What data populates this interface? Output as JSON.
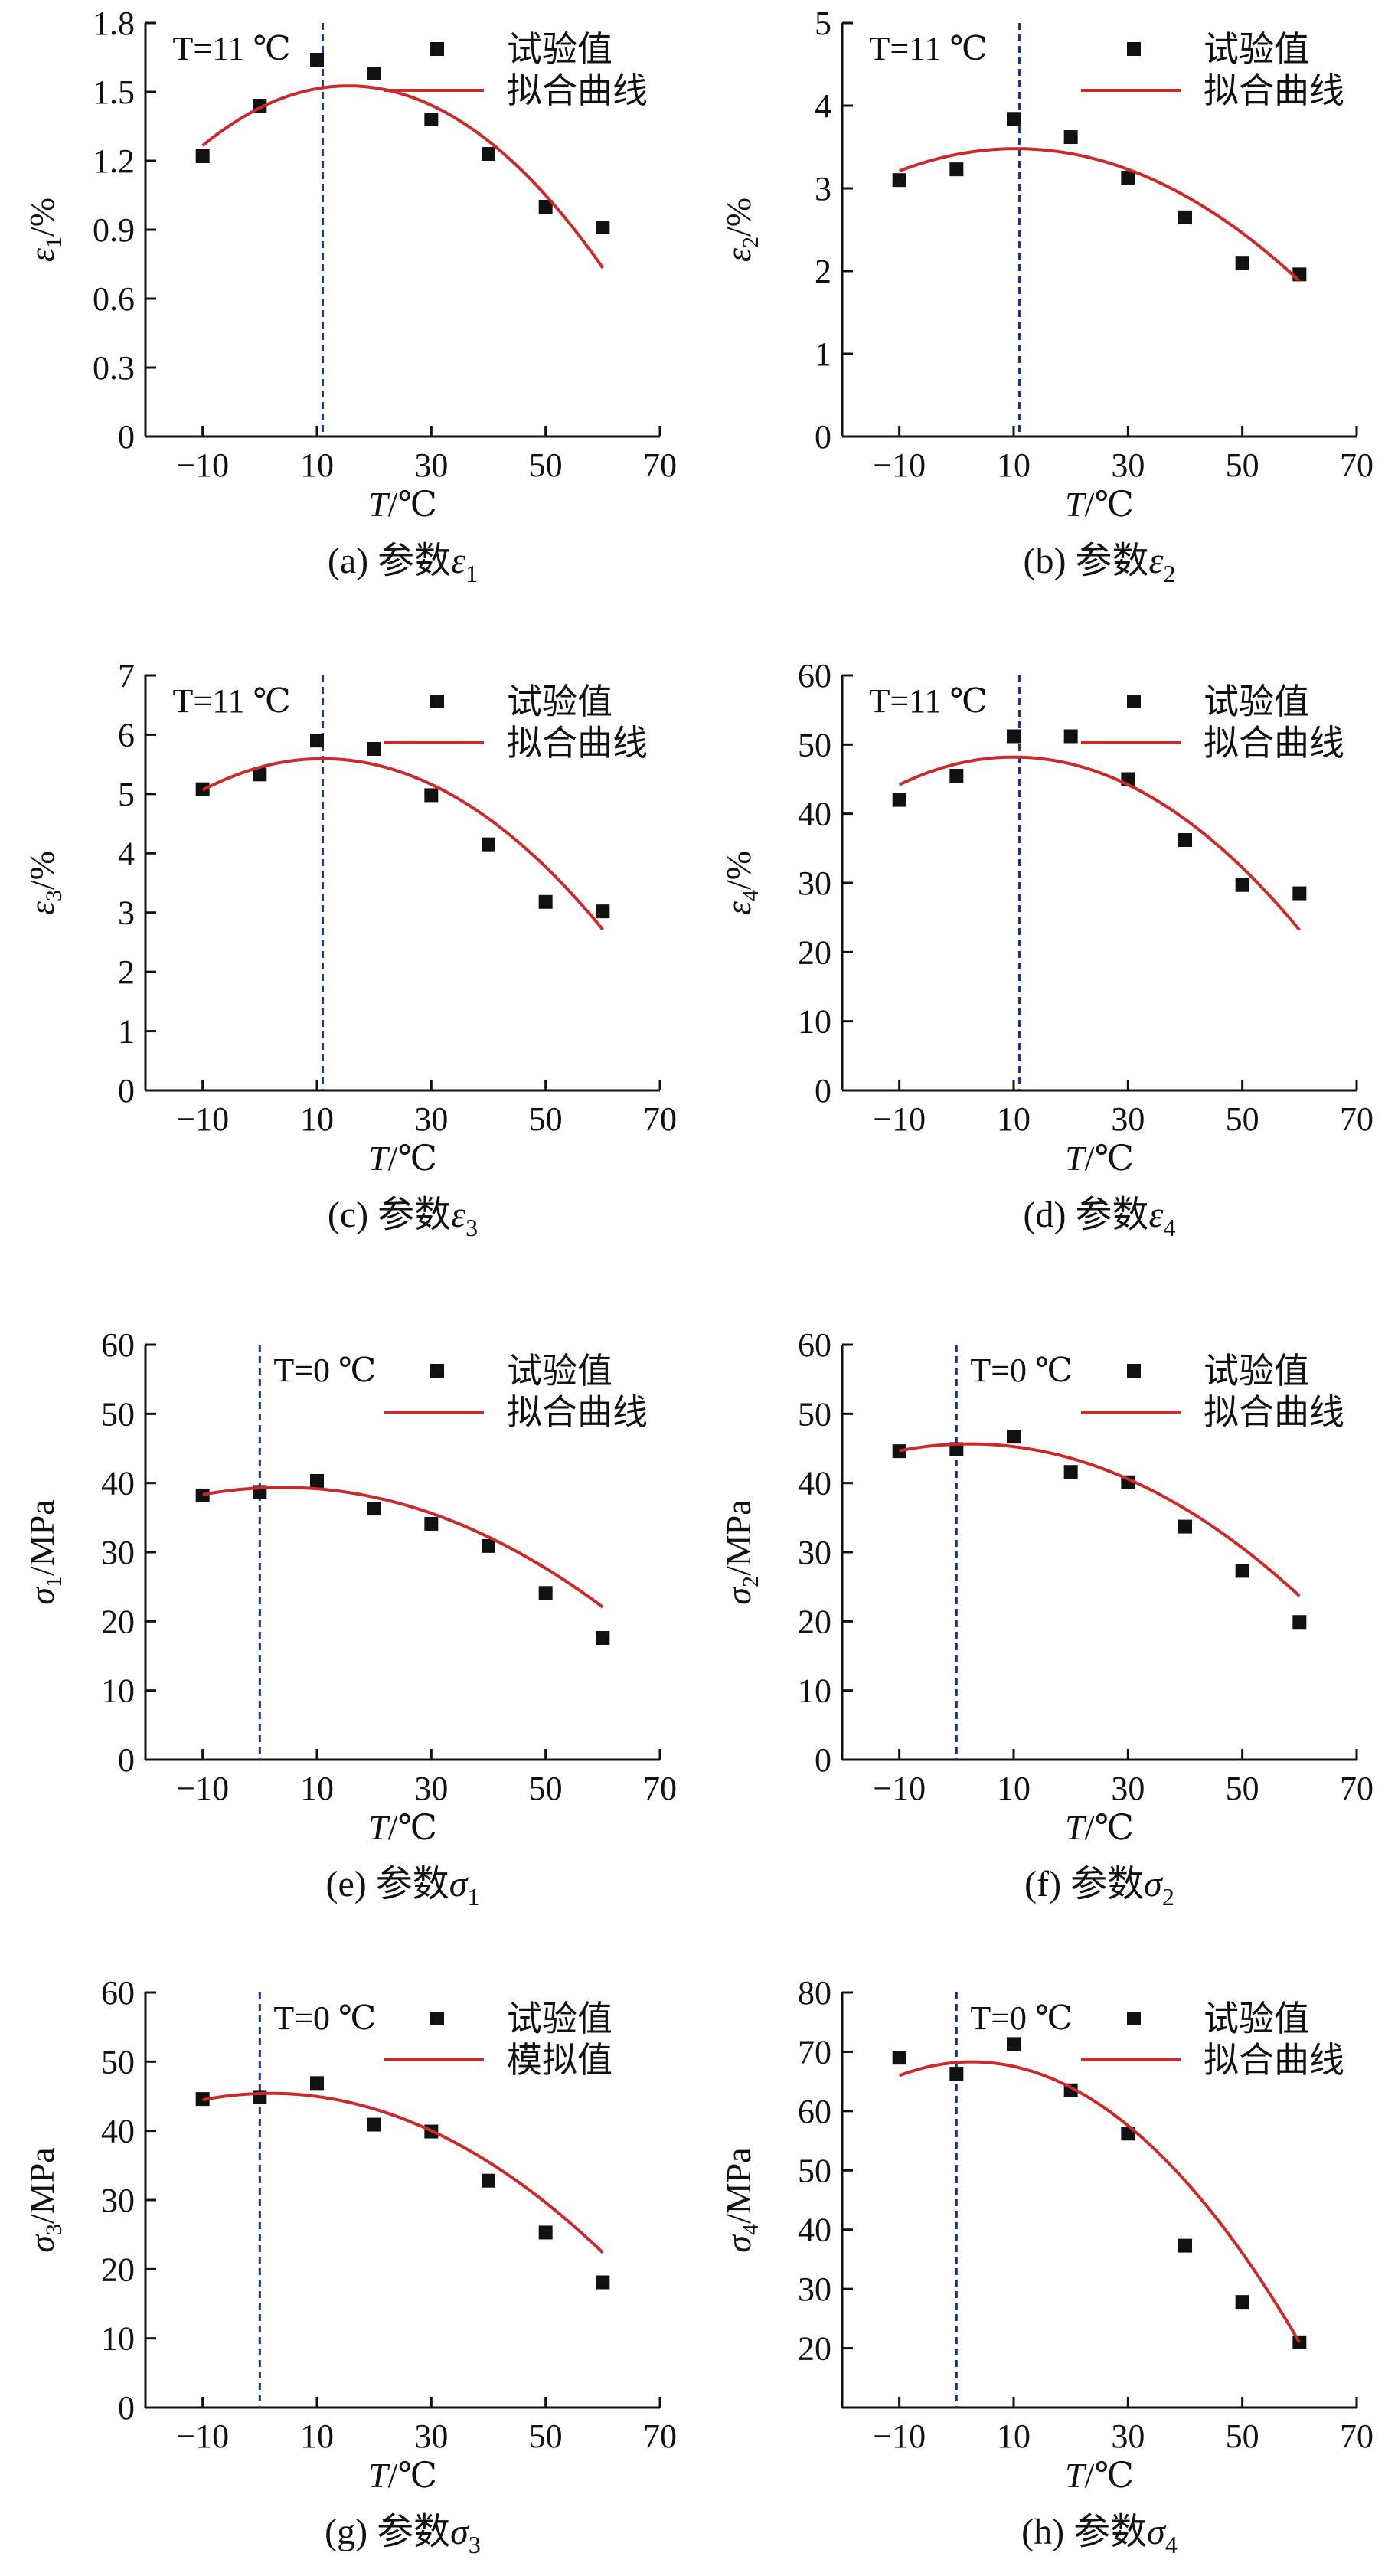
{
  "legend": {
    "exp": "试验值",
    "fit": "拟合曲线",
    "sim": "模拟值"
  },
  "colors": {
    "fit": "#cc2a2a",
    "marker": "#111111",
    "refline": "#1f2f8f",
    "axis": "#111111"
  },
  "chart_data": [
    {
      "id": "a",
      "type": "scatter",
      "caption": {
        "text": "(a) 参数",
        "sym": "ε",
        "sub": "1"
      },
      "ylabel": {
        "sym": "ε",
        "sub": "1",
        "rest": "/%"
      },
      "xlabel": {
        "sym": "T",
        "rest": "/℃"
      },
      "ref": {
        "x": 11,
        "label": "T=11 ℃"
      },
      "xlim": [
        -20,
        70
      ],
      "xticks": [
        -10,
        10,
        30,
        50,
        70
      ],
      "ylim": [
        0,
        1.8
      ],
      "yticks": [
        "0",
        "0.3",
        "0.6",
        "0.9",
        "1.2",
        "1.5",
        "1.8"
      ],
      "series": [
        {
          "role": "exp",
          "x": [
            -10,
            0,
            10,
            20,
            30,
            40,
            50,
            60
          ],
          "y": [
            1.22,
            1.44,
            1.64,
            1.58,
            1.38,
            1.23,
            1.0,
            0.91
          ]
        },
        {
          "role": "fit",
          "quad": [
            -0.0004,
            0.0124,
            1.43
          ],
          "range": [
            -10,
            60
          ]
        }
      ]
    },
    {
      "id": "b",
      "type": "scatter",
      "caption": {
        "text": "(b) 参数",
        "sym": "ε",
        "sub": "2"
      },
      "ylabel": {
        "sym": "ε",
        "sub": "2",
        "rest": "/%"
      },
      "xlabel": {
        "sym": "T",
        "rest": "/℃"
      },
      "ref": {
        "x": 11,
        "label": "T=11 ℃"
      },
      "xlim": [
        -20,
        70
      ],
      "xticks": [
        -10,
        10,
        30,
        50,
        70
      ],
      "ylim": [
        0,
        5
      ],
      "yticks": [
        "0",
        "1",
        "2",
        "3",
        "4",
        "5"
      ],
      "series": [
        {
          "role": "exp",
          "x": [
            -10,
            0,
            10,
            20,
            30,
            40,
            50,
            60
          ],
          "y": [
            3.1,
            3.23,
            3.84,
            3.62,
            3.13,
            2.65,
            2.1,
            1.96
          ]
        },
        {
          "role": "fit",
          "quad": [
            -0.00065,
            0.0135,
            3.41
          ],
          "range": [
            -10,
            60
          ]
        }
      ]
    },
    {
      "id": "c",
      "type": "scatter",
      "caption": {
        "text": "(c) 参数",
        "sym": "ε",
        "sub": "3"
      },
      "ylabel": {
        "sym": "ε",
        "sub": "3",
        "rest": "/%"
      },
      "xlabel": {
        "sym": "T",
        "rest": "/℃"
      },
      "ref": {
        "x": 11,
        "label": "T=11 ℃"
      },
      "xlim": [
        -20,
        70
      ],
      "xticks": [
        -10,
        10,
        30,
        50,
        70
      ],
      "ylim": [
        0,
        7
      ],
      "yticks": [
        "0",
        "1",
        "2",
        "3",
        "4",
        "5",
        "6",
        "7"
      ],
      "series": [
        {
          "role": "exp",
          "x": [
            -10,
            0,
            10,
            20,
            30,
            40,
            50,
            60
          ],
          "y": [
            5.08,
            5.33,
            5.9,
            5.76,
            4.98,
            4.15,
            3.18,
            3.02
          ]
        },
        {
          "role": "fit",
          "quad": [
            -0.0012,
            0.0264,
            5.45
          ],
          "range": [
            -10,
            60
          ]
        }
      ]
    },
    {
      "id": "d",
      "type": "scatter",
      "caption": {
        "text": "(d) 参数",
        "sym": "ε",
        "sub": "4"
      },
      "ylabel": {
        "sym": "ε",
        "sub": "4",
        "rest": "/%"
      },
      "xlabel": {
        "sym": "T",
        "rest": "/℃"
      },
      "ref": {
        "x": 11,
        "label": "T=11 ℃"
      },
      "xlim": [
        -20,
        70
      ],
      "xticks": [
        -10,
        10,
        30,
        50,
        70
      ],
      "ylim": [
        0,
        60
      ],
      "yticks": [
        "0",
        "10",
        "20",
        "30",
        "40",
        "50",
        "60"
      ],
      "series": [
        {
          "role": "exp",
          "x": [
            -10,
            0,
            10,
            20,
            30,
            40,
            50,
            60
          ],
          "y": [
            42,
            45.5,
            51.2,
            51.2,
            45,
            36.2,
            29.7,
            28.5
          ]
        },
        {
          "role": "fit",
          "quad": [
            -0.01,
            0.2,
            47.2
          ],
          "range": [
            -10,
            60
          ]
        }
      ]
    },
    {
      "id": "e",
      "type": "scatter",
      "caption": {
        "text": "(e) 参数",
        "sym": "σ",
        "sub": "1"
      },
      "ylabel": {
        "sym": "σ",
        "sub": "1",
        "rest": "/MPa"
      },
      "xlabel": {
        "sym": "T",
        "rest": "/℃"
      },
      "ref": {
        "x": 0,
        "label": "T=0 ℃"
      },
      "xlim": [
        -20,
        70
      ],
      "xticks": [
        -10,
        10,
        30,
        50,
        70
      ],
      "ylim": [
        0,
        60
      ],
      "yticks": [
        "0",
        "10",
        "20",
        "30",
        "40",
        "50",
        "60"
      ],
      "series": [
        {
          "role": "exp",
          "x": [
            -10,
            0,
            10,
            20,
            30,
            40,
            50,
            60
          ],
          "y": [
            38.2,
            38.7,
            40.3,
            36.3,
            34.1,
            30.9,
            24.1,
            17.6
          ]
        },
        {
          "role": "fit",
          "quad": [
            -0.0055,
            0.0427,
            39.29
          ],
          "range": [
            -10,
            60
          ]
        }
      ]
    },
    {
      "id": "f",
      "type": "scatter",
      "caption": {
        "text": "(f) 参数",
        "sym": "σ",
        "sub": "2"
      },
      "ylabel": {
        "sym": "σ",
        "sub": "2",
        "rest": "/MPa"
      },
      "xlabel": {
        "sym": "T",
        "rest": "/℃"
      },
      "ref": {
        "x": 0,
        "label": "T=0 ℃"
      },
      "xlim": [
        -20,
        70
      ],
      "xticks": [
        -10,
        10,
        30,
        50,
        70
      ],
      "ylim": [
        0,
        60
      ],
      "yticks": [
        "0",
        "10",
        "20",
        "30",
        "40",
        "50",
        "60"
      ],
      "series": [
        {
          "role": "exp",
          "x": [
            -10,
            0,
            10,
            20,
            30,
            40,
            50,
            60
          ],
          "y": [
            44.6,
            44.9,
            46.7,
            41.6,
            40.1,
            33.7,
            27.3,
            19.9
          ]
        },
        {
          "role": "fit",
          "quad": [
            -0.0066,
            0.03,
            45.62
          ],
          "range": [
            -10,
            60
          ]
        }
      ]
    },
    {
      "id": "g",
      "type": "scatter",
      "caption": {
        "text": "(g) 参数",
        "sym": "σ",
        "sub": "3"
      },
      "ylabel": {
        "sym": "σ",
        "sub": "3",
        "rest": "/MPa"
      },
      "xlabel": {
        "sym": "T",
        "rest": "/℃"
      },
      "ref": {
        "x": 0,
        "label": "T=0 ℃"
      },
      "xlim": [
        -20,
        70
      ],
      "xticks": [
        -10,
        10,
        30,
        50,
        70
      ],
      "ylim": [
        0,
        60
      ],
      "yticks": [
        "0",
        "10",
        "20",
        "30",
        "40",
        "50",
        "60"
      ],
      "series": [
        {
          "role": "exp",
          "x": [
            -10,
            0,
            10,
            20,
            30,
            40,
            50,
            60
          ],
          "y": [
            44.6,
            44.9,
            46.9,
            40.9,
            39.9,
            32.8,
            25.3,
            18.1
          ]
        },
        {
          "role": "sim",
          "quad": [
            -0.0068,
            0.0246,
            45.4
          ],
          "range": [
            -10,
            60
          ]
        }
      ]
    },
    {
      "id": "h",
      "type": "scatter",
      "caption": {
        "text": "(h) 参数",
        "sym": "σ",
        "sub": "4"
      },
      "ylabel": {
        "sym": "σ",
        "sub": "4",
        "rest": "/MPa"
      },
      "xlabel": {
        "sym": "T",
        "rest": "/℃"
      },
      "ref": {
        "x": 0,
        "label": "T=0 ℃"
      },
      "xlim": [
        -20,
        70
      ],
      "xticks": [
        -10,
        10,
        30,
        50,
        70
      ],
      "ylim": [
        10,
        80
      ],
      "yticks": [
        "20",
        "30",
        "40",
        "50",
        "60",
        "70",
        "80"
      ],
      "series": [
        {
          "role": "exp",
          "x": [
            -10,
            0,
            10,
            20,
            30,
            40,
            50,
            60
          ],
          "y": [
            69,
            66.3,
            71.3,
            63.5,
            56.2,
            37.3,
            27.8,
            21
          ]
        },
        {
          "role": "fit",
          "quad": [
            -0.0144,
            0.0771,
            68.2
          ],
          "range": [
            -10,
            60
          ]
        }
      ]
    }
  ]
}
